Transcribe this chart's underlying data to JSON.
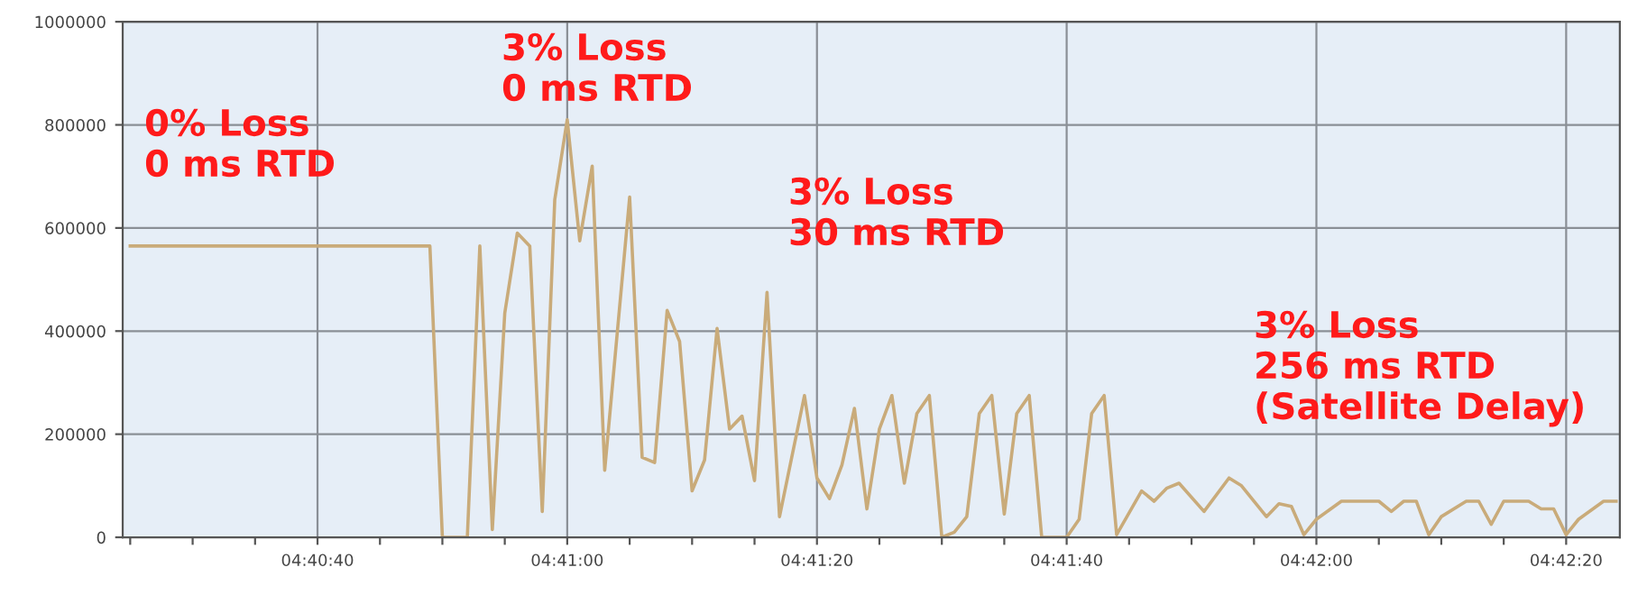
{
  "chart_data": {
    "type": "line",
    "x": [
      4.673611,
      4.680278,
      4.680556,
      4.681111,
      4.681389,
      4.681667,
      4.681944,
      4.682222,
      4.6825,
      4.682778,
      4.683056,
      4.683333,
      4.683611,
      4.683889,
      4.684167,
      4.684722,
      4.685,
      4.685278,
      4.685556,
      4.685833,
      4.686111,
      4.686389,
      4.686667,
      4.686944,
      4.687222,
      4.6875,
      4.687778,
      4.688056,
      4.688611,
      4.688889,
      4.689167,
      4.689444,
      4.689722,
      4.69,
      4.690278,
      4.690556,
      4.690833,
      4.691111,
      4.691389,
      4.691667,
      4.691944,
      4.692222,
      4.6925,
      4.692778,
      4.693056,
      4.693333,
      4.693611,
      4.693889,
      4.694444,
      4.694722,
      4.695,
      4.695278,
      4.695556,
      4.696111,
      4.696389,
      4.696667,
      4.696944,
      4.6975,
      4.698056,
      4.698333,
      4.698889,
      4.699167,
      4.699444,
      4.699722,
      4.7,
      4.700556,
      4.701389,
      4.701667,
      4.701944,
      4.702222,
      4.7025,
      4.702778,
      4.703333,
      4.703611,
      4.703889,
      4.704167,
      4.704722,
      4.705,
      4.705278,
      4.705556,
      4.705833,
      4.706389,
      4.706667
    ],
    "series": [
      {
        "color": "#c9ab7a",
        "values": [
          565000,
          565000,
          0,
          0,
          565000,
          15000,
          435000,
          590000,
          565000,
          50000,
          655000,
          810000,
          575000,
          720000,
          130000,
          660000,
          155000,
          145000,
          440000,
          380000,
          90000,
          150000,
          405000,
          210000,
          235000,
          110000,
          475000,
          40000,
          275000,
          115000,
          75000,
          140000,
          250000,
          55000,
          210000,
          275000,
          105000,
          240000,
          275000,
          0,
          10000,
          40000,
          240000,
          275000,
          45000,
          240000,
          275000,
          0,
          0,
          35000,
          240000,
          275000,
          5000,
          90000,
          70000,
          95000,
          105000,
          50000,
          115000,
          100000,
          40000,
          65000,
          60000,
          5000,
          35000,
          70000,
          70000,
          50000,
          70000,
          70000,
          5000,
          40000,
          70000,
          70000,
          25000,
          70000,
          70000,
          55000,
          55000,
          5000,
          35000,
          70000,
          70000
        ]
      }
    ],
    "xlim": [
      4.673444,
      4.70675
    ],
    "xticks": [
      {
        "value": 4.673611,
        "label": null
      },
      {
        "value": 4.675,
        "label": null
      },
      {
        "value": 4.676389,
        "label": null
      },
      {
        "value": 4.677778,
        "label": "04:40:40"
      },
      {
        "value": 4.679167,
        "label": null
      },
      {
        "value": 4.680556,
        "label": null
      },
      {
        "value": 4.681944,
        "label": null
      },
      {
        "value": 4.683333,
        "label": "04:41:00"
      },
      {
        "value": 4.684722,
        "label": null
      },
      {
        "value": 4.686111,
        "label": null
      },
      {
        "value": 4.6875,
        "label": null
      },
      {
        "value": 4.688889,
        "label": "04:41:20"
      },
      {
        "value": 4.690278,
        "label": null
      },
      {
        "value": 4.691667,
        "label": null
      },
      {
        "value": 4.693056,
        "label": null
      },
      {
        "value": 4.694444,
        "label": "04:41:40"
      },
      {
        "value": 4.695833,
        "label": null
      },
      {
        "value": 4.697222,
        "label": null
      },
      {
        "value": 4.698611,
        "label": null
      },
      {
        "value": 4.7,
        "label": "04:42:00"
      },
      {
        "value": 4.701389,
        "label": null
      },
      {
        "value": 4.702778,
        "label": null
      },
      {
        "value": 4.704167,
        "label": null
      },
      {
        "value": 4.705556,
        "label": "04:42:20"
      }
    ],
    "ylim": [
      0,
      1000000
    ],
    "yticks": [
      0,
      200000,
      400000,
      600000,
      800000,
      1000000
    ],
    "grid": true,
    "marker": "none",
    "line_style": "solid",
    "annotations": [
      "0% Loss\n0 ms RTD",
      "3% Loss\n0 ms RTD",
      "3% Loss\n30 ms RTD",
      "3% Loss\n256 ms RTD\n(Satellite Delay)"
    ]
  }
}
